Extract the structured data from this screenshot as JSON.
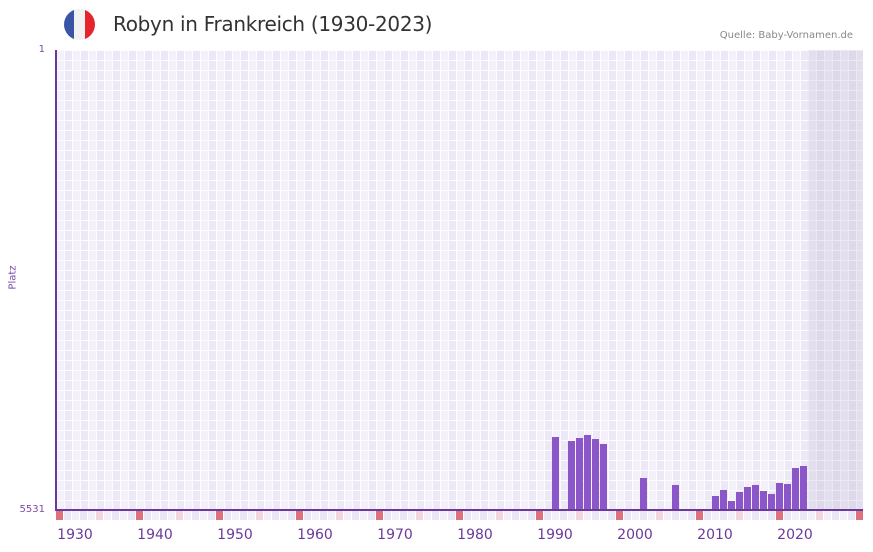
{
  "header": {
    "title": "Robyn in Frankreich (1930-2023)",
    "source": "Quelle: Baby-Vornamen.de",
    "flag_colors": [
      "#3a55a6",
      "#f2f2f2",
      "#e5252e"
    ]
  },
  "colors": {
    "bar": "#8b56c7",
    "axis": "#6a3a9a",
    "decade_marker": "#e0707c",
    "half_decade_marker": "#f5d5dd"
  },
  "chart_data": {
    "type": "bar",
    "title": "Robyn in Frankreich (1930-2023)",
    "xlabel": "",
    "ylabel": "Platz",
    "y_inverted": true,
    "ylim": [
      5531,
      1
    ],
    "y_ticks": [
      "1",
      "5531"
    ],
    "x_ticks": [
      "1930",
      "1940",
      "1950",
      "1960",
      "1970",
      "1980",
      "1990",
      "2000",
      "2010",
      "2020"
    ],
    "x_range": [
      1928,
      2028
    ],
    "shaded_future_from": 2022,
    "categories": [
      1990,
      1992,
      1993,
      1994,
      1995,
      1996,
      2001,
      2005,
      2010,
      2011,
      2012,
      2013,
      2014,
      2015,
      2016,
      2017,
      2018,
      2019,
      2020,
      2021
    ],
    "values": [
      4653,
      4701,
      4665,
      4629,
      4677,
      4737,
      5146,
      5230,
      5362,
      5290,
      5423,
      5314,
      5254,
      5230,
      5302,
      5338,
      5206,
      5218,
      5026,
      5002
    ],
    "grid": true,
    "legend": null
  }
}
